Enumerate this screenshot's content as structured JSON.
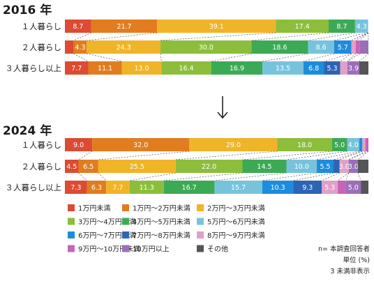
{
  "colors": {
    "c1": "#dc4b32",
    "c2": "#e17d1e",
    "c3": "#f0b428",
    "c4": "#8cbe3c",
    "c5": "#3caa55",
    "c6": "#78c3dc",
    "c7": "#1e8cdc",
    "c8": "#2d64b4",
    "c9": "#e1a0c8",
    "c10": "#c864b4",
    "c11": "#9b6eb9",
    "c12": "#555555"
  },
  "chart_data": {
    "type": "bar",
    "orientation": "horizontal",
    "stacked": "percent",
    "xlim": [
      0,
      100
    ],
    "categories": [
      "1万円未満",
      "1万円～2万円未満",
      "2万円～3万円未満",
      "3万円～4万円未満",
      "4万円～5万円未満",
      "5万円～6万円未満",
      "6万円～7万円未満",
      "7万円～8万円未満",
      "8万円～9万円未満",
      "9万円～10万円未満",
      "10万円以上",
      "その他"
    ],
    "legend_position": "bottom",
    "panels": [
      {
        "title": "2016 年",
        "rows": [
          {
            "label": "１人暮らし",
            "values": [
              8.7,
              21.7,
              39.1,
              17.4,
              8.7,
              4.3,
              0,
              0,
              0,
              0,
              0,
              0
            ],
            "labels": [
              "8.7",
              "21.7",
              "39.1",
              "17.4",
              "8.7",
              "4.3",
              "",
              "",
              "",
              "",
              "",
              ""
            ]
          },
          {
            "label": "２人暮らし",
            "values": [
              2.9,
              4.3,
              24.3,
              30.0,
              18.6,
              8.6,
              5.7,
              0,
              1.4,
              1.4,
              2.8,
              0
            ],
            "labels": [
              "",
              "4.3",
              "24.3",
              "30.0",
              "18.6",
              "8.6",
              "5.7",
              "",
              "",
              "",
              "",
              ""
            ]
          },
          {
            "label": "３人暮らし以上",
            "values": [
              7.7,
              11.1,
              13.0,
              16.4,
              16.9,
              13.5,
              6.8,
              5.3,
              2.4,
              0,
              3.9,
              3.0
            ],
            "labels": [
              "7.7",
              "11.1",
              "13.0",
              "16.4",
              "16.9",
              "13.5",
              "6.8",
              "5.3",
              "",
              "",
              "3.9",
              ""
            ]
          }
        ]
      },
      {
        "title": "2024 年",
        "rows": [
          {
            "label": "１人暮らし",
            "values": [
              9.0,
              32.0,
              29.0,
              18.0,
              5.0,
              4.0,
              1.0,
              0,
              1.0,
              1.0,
              0,
              0
            ],
            "labels": [
              "9.0",
              "32.0",
              "29.0",
              "18.0",
              "5.0",
              "4.0",
              "",
              "",
              "",
              "",
              "",
              ""
            ]
          },
          {
            "label": "２人暮らし",
            "values": [
              4.5,
              6.5,
              25.5,
              22.0,
              14.5,
              10.0,
              5.5,
              2.0,
              3.0,
              0,
              3.0,
              3.5
            ],
            "labels": [
              "4.5",
              "6.5",
              "25.5",
              "22.0",
              "14.5",
              "10.0",
              "5.5",
              "",
              "3.0",
              "",
              "3.0",
              ""
            ]
          },
          {
            "label": "３人暮らし以上",
            "values": [
              7.3,
              6.3,
              7.7,
              11.3,
              16.7,
              15.7,
              10.3,
              9.3,
              5.3,
              2.6,
              5.0,
              2.5
            ],
            "labels": [
              "7.3",
              "6.3",
              "7.7",
              "11.3",
              "16.7",
              "15.7",
              "10.3",
              "9.3",
              "5.3",
              "",
              "5.0",
              ""
            ]
          }
        ]
      }
    ]
  },
  "notes": {
    "n": "n= 本調査回答者",
    "unit": "単位 (%)",
    "hidden": "3 未満非表示"
  }
}
